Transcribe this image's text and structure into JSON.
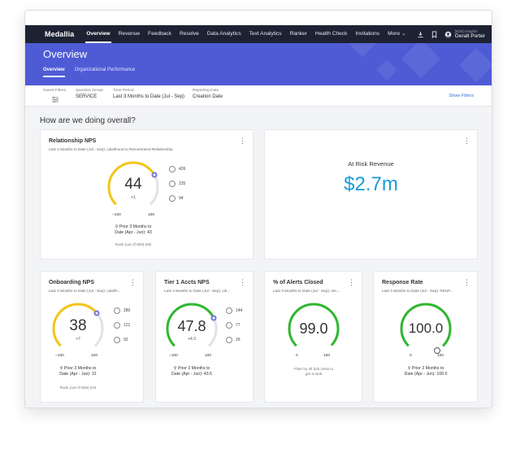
{
  "nav": {
    "logo": "Medallia",
    "items": [
      "Overview",
      "Revenue",
      "Feedback",
      "Resolve",
      "Data Analytics",
      "Text Analytics",
      "Ranker",
      "Health Check",
      "Invitations",
      "More ⌄"
    ],
    "user_sub": "[B2B] Insights",
    "user_name": "Geralt Porter"
  },
  "banner": {
    "title": "Overview",
    "tabs": [
      "Overview",
      "Organizational Performance"
    ]
  },
  "filters": {
    "saved_label": "Saved Filters",
    "question_group_label": "Question Group",
    "question_group_value": "SERVICE",
    "time_period_label": "Time Period",
    "time_period_value": "Last 3 Months to Date (Jul - Sep)",
    "reporting_date_label": "Reporting Date",
    "reporting_date_value": "Creation Date",
    "show_filters": "Show Filters"
  },
  "section_title": "How are we doing overall?",
  "cards": {
    "relationship": {
      "title": "Relationship NPS",
      "subtitle": "Last 3 Months to Date (Jul - Sep): Likelihood to Recommend Relationship",
      "score": "44",
      "score_fraction": 0.72,
      "delta": "+1",
      "min": "−100",
      "max": "100",
      "promoters": "426",
      "passives": "235",
      "detractors": "94",
      "prior": "Prior 3 Months to Date (Apr - Jun): 43",
      "prior_line1": "Prior 3 Months to",
      "prior_line2": "Date (Apr - Jun): 43",
      "rank": "Rank (out of 669) 605"
    },
    "at_risk": {
      "label": "At Risk Revenue",
      "value": "$2.7m"
    },
    "onboarding": {
      "title": "Onboarding NPS",
      "subtitle": "Last 3 Months to Date (Jul - Sep): Likelih...",
      "score": "38",
      "score_fraction": 0.69,
      "delta": "+7",
      "min": "−100",
      "max": "100",
      "promoters": "280",
      "passives": "121",
      "detractors": "92",
      "prior_line1": "Prior 3 Months to",
      "prior_line2": "Date (Apr - Jun): 31",
      "rank": "Rank (out of 608) 515"
    },
    "tier1": {
      "title": "Tier 1 Accts NPS",
      "subtitle": "Last 3 Months to Date (Jul - Sep): Lik...",
      "score": "47.8",
      "score_fraction": 0.74,
      "delta": "+4.3",
      "min": "−100",
      "max": "100",
      "promoters": "144",
      "passives": "77",
      "detractors": "26",
      "prior_line1": "Prior 3 Months to",
      "prior_line2": "Date (Apr - Jun): 43.5"
    },
    "alerts": {
      "title": "% of Alerts Closed",
      "subtitle": "Last 3 Months to Date (Jul - Sep): Ale...",
      "score": "99.0",
      "score_fraction": 0.99,
      "min": "0",
      "max": "100",
      "note_line1": "Filter by All b2b Units to",
      "note_line2": "get a rank"
    },
    "response": {
      "title": "Response Rate",
      "subtitle": "Last 3 Months to Date (Jul - Sep): RESP...",
      "score": "100.0",
      "score_fraction": 1.0,
      "min": "0",
      "max": "100",
      "prior_line1": "Prior 3 Months to",
      "prior_line2": "Date (Apr - Jun): 100.0"
    }
  },
  "colors": {
    "nav_bg": "#1d2233",
    "banner_bg": "#4f5bd5",
    "nps_arc": "#f2c618",
    "green_arc": "#2eb82e",
    "track": "#e1e2e6",
    "marker": "#7b7fd6",
    "revenue": "#1a9bdb",
    "link": "#3a6fd8"
  },
  "icons": [
    "download-icon",
    "bookmark-icon",
    "user-icon",
    "sliders-icon",
    "kebab-icon",
    "happy-face-icon",
    "neutral-face-icon",
    "sad-face-icon",
    "pin-icon"
  ]
}
